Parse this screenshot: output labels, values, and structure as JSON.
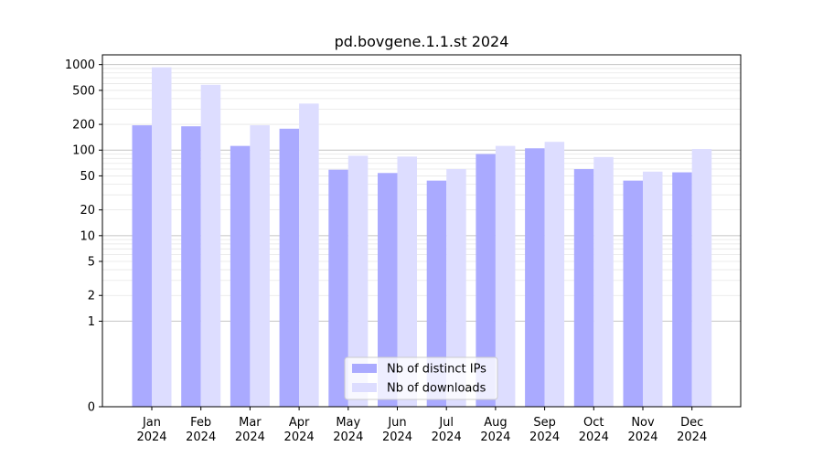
{
  "chart_data": {
    "type": "bar",
    "title": "pd.bovgene.1.1.st 2024",
    "xlabel": "",
    "ylabel": "",
    "y_scale": "symlog",
    "ylim": [
      0,
      1300
    ],
    "y_ticks": [
      0,
      1,
      2,
      5,
      10,
      20,
      50,
      100,
      200,
      500,
      1000
    ],
    "y_tick_labels": [
      "0",
      "1",
      "2",
      "5",
      "10",
      "20",
      "50",
      "100",
      "200",
      "500",
      "1000"
    ],
    "grid": true,
    "legend_position": "bottom-center",
    "categories": [
      {
        "month": "Jan",
        "year": "2024"
      },
      {
        "month": "Feb",
        "year": "2024"
      },
      {
        "month": "Mar",
        "year": "2024"
      },
      {
        "month": "Apr",
        "year": "2024"
      },
      {
        "month": "May",
        "year": "2024"
      },
      {
        "month": "Jun",
        "year": "2024"
      },
      {
        "month": "Jul",
        "year": "2024"
      },
      {
        "month": "Aug",
        "year": "2024"
      },
      {
        "month": "Sep",
        "year": "2024"
      },
      {
        "month": "Oct",
        "year": "2024"
      },
      {
        "month": "Nov",
        "year": "2024"
      },
      {
        "month": "Dec",
        "year": "2024"
      }
    ],
    "series": [
      {
        "name": "Nb of distinct IPs",
        "color": "#aaaaff",
        "values": [
          195,
          190,
          112,
          178,
          59,
          54,
          44,
          90,
          105,
          60,
          44,
          55
        ]
      },
      {
        "name": "Nb of downloads",
        "color": "#ddddff",
        "values": [
          930,
          580,
          195,
          350,
          86,
          84,
          60,
          112,
          125,
          83,
          56,
          103
        ]
      }
    ]
  }
}
